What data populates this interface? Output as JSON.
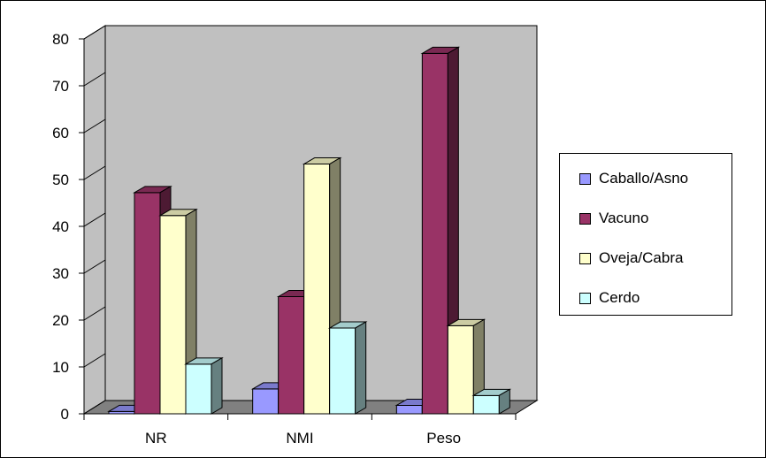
{
  "chart_data": {
    "type": "bar",
    "categories": [
      "NR",
      "NMI",
      "Peso"
    ],
    "series": [
      {
        "name": "Caballo/Asno",
        "values": [
          0.5,
          5.3,
          1.8
        ]
      },
      {
        "name": "Vacuno",
        "values": [
          47.2,
          25.0,
          76.9
        ]
      },
      {
        "name": "Oveja/Cabra",
        "values": [
          42.3,
          53.3,
          18.8
        ]
      },
      {
        "name": "Cerdo",
        "values": [
          10.6,
          18.3,
          3.9
        ]
      }
    ],
    "ylim": [
      0,
      80
    ],
    "yticks": [
      "0",
      "10",
      "20",
      "30",
      "40",
      "50",
      "60",
      "70",
      "80"
    ],
    "title": "",
    "xlabel": "",
    "ylabel": "",
    "grid": false,
    "style": "3d-clustered-column",
    "legend_position": "right",
    "colors": {
      "Caballo/Asno": "#9999ff",
      "Vacuno": "#993366",
      "Oveja/Cabra": "#ffffcc",
      "Cerdo": "#ccffff",
      "back_wall": "#c0c0c0",
      "floor": "#808080"
    }
  }
}
